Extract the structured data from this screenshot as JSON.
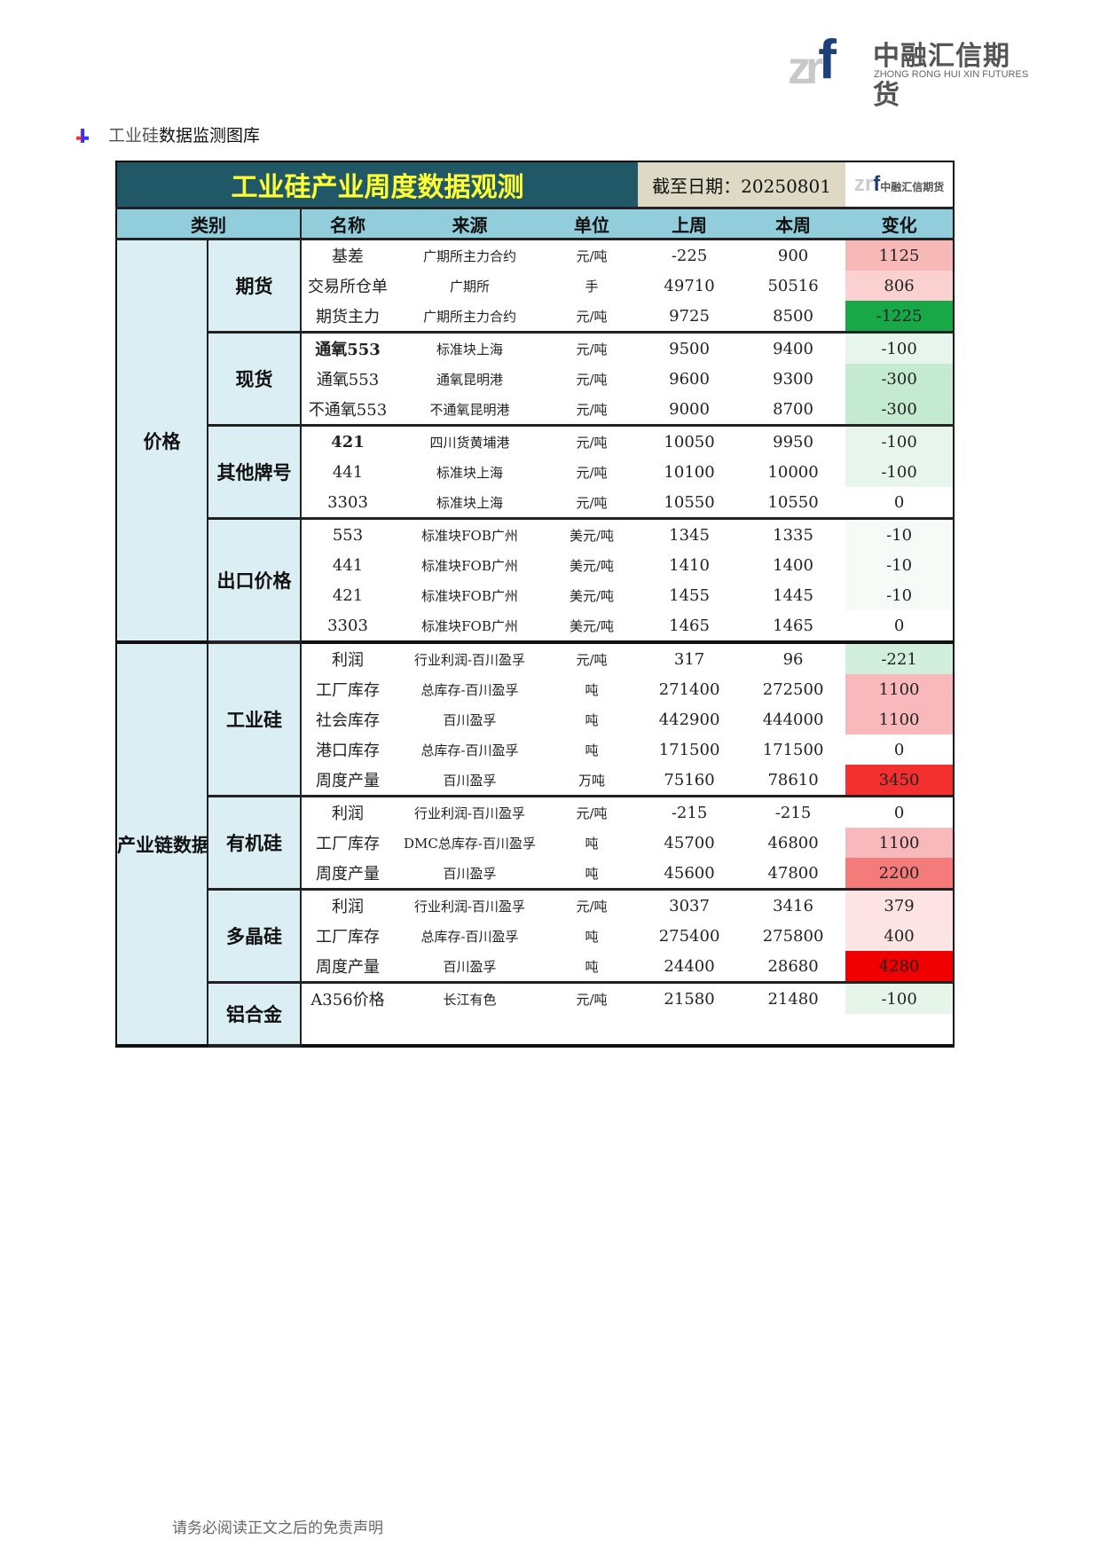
{
  "logo": {
    "mark": "zr",
    "mark_f": "f",
    "cn": "中融汇信期货",
    "en": "ZHONG RONG HUI XIN FUTURES"
  },
  "section": {
    "prefix": "工业硅",
    "suffix": "数据监测图库"
  },
  "table": {
    "title": "工业硅产业周度数据观测",
    "date": "截至日期：20250801",
    "headers": {
      "category": "类别",
      "name": "名称",
      "source": "来源",
      "unit": "单位",
      "last": "上周",
      "this": "本周",
      "change": "变化"
    },
    "groups": [
      {
        "category": "价格",
        "subgroups": [
          {
            "label": "期货",
            "rows": [
              {
                "name": "基差",
                "source": "广期所主力合约",
                "unit": "元/吨",
                "last": "-225",
                "this": "900",
                "change": "1125",
                "color": "#f8b8b8"
              },
              {
                "name": "交易所仓单",
                "source": "广期所",
                "unit": "手",
                "last": "49710",
                "this": "50516",
                "change": "806",
                "color": "#fbd0d0"
              },
              {
                "name": "期货主力",
                "source": "广期所主力合约",
                "unit": "元/吨",
                "last": "9725",
                "this": "8500",
                "change": "-1225",
                "color": "#18a848"
              }
            ]
          },
          {
            "label": "现货",
            "rows": [
              {
                "name": "通氧553",
                "bold": true,
                "source": "标准块上海",
                "unit": "元/吨",
                "last": "9500",
                "this": "9400",
                "change": "-100",
                "color": "#e8f5ec"
              },
              {
                "name": "通氧553",
                "source": "通氧昆明港",
                "unit": "元/吨",
                "last": "9600",
                "this": "9300",
                "change": "-300",
                "color": "#c4ead1"
              },
              {
                "name": "不通氧553",
                "source": "不通氧昆明港",
                "unit": "元/吨",
                "last": "9000",
                "this": "8700",
                "change": "-300",
                "color": "#c4ead1"
              }
            ]
          },
          {
            "label": "其他牌号",
            "rows": [
              {
                "name": "421",
                "bold": true,
                "source": "四川货黄埔港",
                "unit": "元/吨",
                "last": "10050",
                "this": "9950",
                "change": "-100",
                "color": "#e8f5ec"
              },
              {
                "name": "441",
                "source": "标准块上海",
                "unit": "元/吨",
                "last": "10100",
                "this": "10000",
                "change": "-100",
                "color": "#e8f5ec"
              },
              {
                "name": "3303",
                "source": "标准块上海",
                "unit": "元/吨",
                "last": "10550",
                "this": "10550",
                "change": "0",
                "color": "#ffffff"
              }
            ]
          },
          {
            "label": "出口价格",
            "rows": [
              {
                "name": "553",
                "source": "标准块FOB广州",
                "unit": "美元/吨",
                "last": "1345",
                "this": "1335",
                "change": "-10",
                "color": "#f6fbf7"
              },
              {
                "name": "441",
                "source": "标准块FOB广州",
                "unit": "美元/吨",
                "last": "1410",
                "this": "1400",
                "change": "-10",
                "color": "#f6fbf7"
              },
              {
                "name": "421",
                "source": "标准块FOB广州",
                "unit": "美元/吨",
                "last": "1455",
                "this": "1445",
                "change": "-10",
                "color": "#f6fbf7"
              },
              {
                "name": "3303",
                "source": "标准块FOB广州",
                "unit": "美元/吨",
                "last": "1465",
                "this": "1465",
                "change": "0",
                "color": "#ffffff"
              }
            ]
          }
        ]
      },
      {
        "category": "产业链数据",
        "subgroups": [
          {
            "label": "工业硅",
            "rows": [
              {
                "name": "利润",
                "source": "行业利润-百川盈孚",
                "unit": "元/吨",
                "last": "317",
                "this": "96",
                "change": "-221",
                "color": "#d2eedc"
              },
              {
                "name": "工厂库存",
                "source": "总库存-百川盈孚",
                "unit": "吨",
                "last": "271400",
                "this": "272500",
                "change": "1100",
                "color": "#f9b9bc"
              },
              {
                "name": "社会库存",
                "source": "百川盈孚",
                "unit": "吨",
                "last": "442900",
                "this": "444000",
                "change": "1100",
                "color": "#f9b9bc"
              },
              {
                "name": "港口库存",
                "source": "总库存-百川盈孚",
                "unit": "吨",
                "last": "171500",
                "this": "171500",
                "change": "0",
                "color": "#ffffff"
              },
              {
                "name": "周度产量",
                "source": "百川盈孚",
                "unit": "万吨",
                "last": "75160",
                "this": "78610",
                "change": "3450",
                "color": "#f42f2f"
              }
            ]
          },
          {
            "label": "有机硅",
            "rows": [
              {
                "name": "利润",
                "source": "行业利润-百川盈孚",
                "unit": "元/吨",
                "last": "-215",
                "this": "-215",
                "change": "0",
                "color": "#ffffff"
              },
              {
                "name": "工厂库存",
                "source": "DMC总库存-百川盈孚",
                "unit": "吨",
                "last": "45700",
                "this": "46800",
                "change": "1100",
                "color": "#f9b9bc"
              },
              {
                "name": "周度产量",
                "source": "百川盈孚",
                "unit": "吨",
                "last": "45600",
                "this": "47800",
                "change": "2200",
                "color": "#f57b7b"
              }
            ]
          },
          {
            "label": "多晶硅",
            "rows": [
              {
                "name": "利润",
                "source": "行业利润-百川盈孚",
                "unit": "元/吨",
                "last": "3037",
                "this": "3416",
                "change": "379",
                "color": "#fde3e3"
              },
              {
                "name": "工厂库存",
                "source": "总库存-百川盈孚",
                "unit": "吨",
                "last": "275400",
                "this": "275800",
                "change": "400",
                "color": "#fde4e4"
              },
              {
                "name": "周度产量",
                "source": "百川盈孚",
                "unit": "吨",
                "last": "24400",
                "this": "28680",
                "change": "4280",
                "color": "#f00000"
              }
            ]
          },
          {
            "label": "铝合金",
            "rows": [
              {
                "name": "A356价格",
                "source": "长江有色",
                "unit": "元/吨",
                "last": "21580",
                "this": "21480",
                "change": "-100",
                "color": "#e6f5ea"
              }
            ],
            "extra_blank": true
          }
        ]
      }
    ]
  },
  "footer": "请务必阅读正文之后的免责声明"
}
